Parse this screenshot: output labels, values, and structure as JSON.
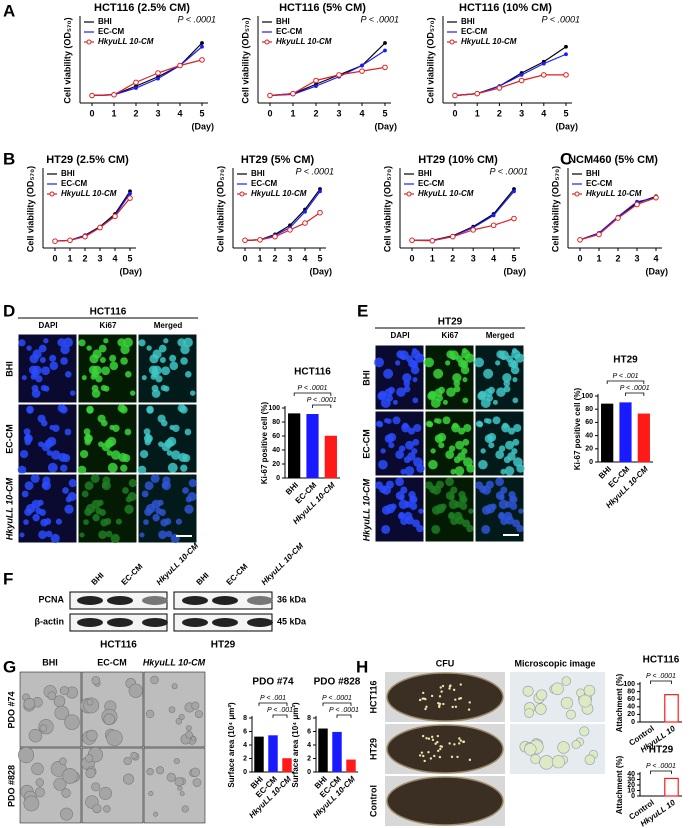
{
  "panel_letters": [
    "A",
    "B",
    "C",
    "D",
    "E",
    "F",
    "G",
    "H"
  ],
  "chart_data": [
    {
      "type": "line",
      "title": "HCT116 (2.5% CM)",
      "x": [
        0,
        1,
        2,
        3,
        4,
        5
      ],
      "xlim": [
        0,
        5
      ],
      "xticks": [
        0,
        1,
        2,
        3,
        4,
        5
      ],
      "x_label": "(Day)",
      "y_label": "Cell viability (OD₅₇₀)",
      "ylim": [
        0,
        2
      ],
      "annotation": "P < .0001",
      "series": [
        {
          "name": "BHI",
          "color": "#000000",
          "values": [
            0.2,
            0.22,
            0.45,
            0.7,
            1.0,
            1.6
          ]
        },
        {
          "name": "EC-CM",
          "color": "#1a1aff",
          "values": [
            0.2,
            0.22,
            0.4,
            0.65,
            1.0,
            1.5
          ]
        },
        {
          "name": "HkyuLL 10-CM",
          "color": "#e02020",
          "values": [
            0.2,
            0.22,
            0.55,
            0.8,
            1.0,
            1.15
          ]
        }
      ]
    },
    {
      "type": "line",
      "title": "HCT116 (5% CM)",
      "x": [
        0,
        1,
        2,
        3,
        4,
        5
      ],
      "xlim": [
        0,
        5
      ],
      "xticks": [
        0,
        1,
        2,
        3,
        4,
        5
      ],
      "x_label": "(Day)",
      "y_label": "Cell viability (OD₅₇₀)",
      "ylim": [
        0,
        2
      ],
      "annotation": "P < .0001",
      "series": [
        {
          "name": "BHI",
          "color": "#000000",
          "values": [
            0.2,
            0.25,
            0.5,
            0.75,
            1.0,
            1.6
          ]
        },
        {
          "name": "EC-CM",
          "color": "#1a1aff",
          "values": [
            0.2,
            0.23,
            0.45,
            0.7,
            1.0,
            1.4
          ]
        },
        {
          "name": "HkyuLL 10-CM",
          "color": "#e02020",
          "values": [
            0.2,
            0.25,
            0.6,
            0.75,
            0.85,
            0.95
          ]
        }
      ]
    },
    {
      "type": "line",
      "title": "HCT116 (10% CM)",
      "x": [
        0,
        1,
        2,
        3,
        4,
        5
      ],
      "xlim": [
        0,
        5
      ],
      "xticks": [
        0,
        1,
        2,
        3,
        4,
        5
      ],
      "x_label": "(Day)",
      "y_label": "Cell viability (OD₅₇₀)",
      "ylim": [
        0,
        2
      ],
      "annotation": "P < .0001",
      "series": [
        {
          "name": "BHI",
          "color": "#000000",
          "values": [
            0.2,
            0.25,
            0.45,
            0.8,
            1.1,
            1.5
          ]
        },
        {
          "name": "EC-CM",
          "color": "#1a1aff",
          "values": [
            0.2,
            0.25,
            0.45,
            0.75,
            1.05,
            1.3
          ]
        },
        {
          "name": "HkyuLL 10-CM",
          "color": "#e02020",
          "values": [
            0.2,
            0.25,
            0.4,
            0.6,
            0.75,
            0.75
          ]
        }
      ]
    },
    {
      "type": "line",
      "title": "HT29 (2.5% CM)",
      "x": [
        0,
        1,
        2,
        3,
        4,
        5
      ],
      "xlim": [
        0,
        5
      ],
      "xticks": [
        0,
        1,
        2,
        3,
        4,
        5
      ],
      "x_label": "(Day)",
      "y_label": "Cell viability (OD₅₇₀)",
      "ylim": [
        0,
        1.5
      ],
      "series": [
        {
          "name": "BHI",
          "color": "#000000",
          "values": [
            0.15,
            0.17,
            0.28,
            0.47,
            0.75,
            1.25
          ]
        },
        {
          "name": "EC-CM",
          "color": "#1a1aff",
          "values": [
            0.15,
            0.17,
            0.27,
            0.45,
            0.72,
            1.2
          ]
        },
        {
          "name": "HkyuLL 10-CM",
          "color": "#e02020",
          "values": [
            0.15,
            0.17,
            0.25,
            0.45,
            0.7,
            1.1
          ]
        }
      ]
    },
    {
      "type": "line",
      "title": "HT29 (5% CM)",
      "x": [
        0,
        1,
        2,
        3,
        4,
        5
      ],
      "xlim": [
        0,
        5
      ],
      "xticks": [
        0,
        1,
        2,
        3,
        4,
        5
      ],
      "x_label": "(Day)",
      "y_label": "Cell viability (OD₅₇₀)",
      "ylim": [
        0,
        1.5
      ],
      "annotation": "P < .0001",
      "series": [
        {
          "name": "BHI",
          "color": "#000000",
          "values": [
            0.17,
            0.18,
            0.3,
            0.5,
            0.85,
            1.3
          ]
        },
        {
          "name": "EC-CM",
          "color": "#1a1aff",
          "values": [
            0.17,
            0.18,
            0.28,
            0.45,
            0.8,
            1.25
          ]
        },
        {
          "name": "HkyuLL 10-CM",
          "color": "#e02020",
          "values": [
            0.17,
            0.18,
            0.25,
            0.4,
            0.55,
            0.78
          ]
        }
      ]
    },
    {
      "type": "line",
      "title": "HT29 (10% CM)",
      "x": [
        0,
        1,
        2,
        3,
        4,
        5
      ],
      "xlim": [
        0,
        5
      ],
      "xticks": [
        0,
        1,
        2,
        3,
        4,
        5
      ],
      "x_label": "(Day)",
      "y_label": "Cell viability (OD₅₇₀)",
      "ylim": [
        0,
        1.5
      ],
      "annotation": "P < .0001",
      "series": [
        {
          "name": "BHI",
          "color": "#000000",
          "values": [
            0.17,
            0.17,
            0.27,
            0.47,
            0.75,
            1.3
          ]
        },
        {
          "name": "EC-CM",
          "color": "#1a1aff",
          "values": [
            0.17,
            0.17,
            0.26,
            0.45,
            0.72,
            1.25
          ]
        },
        {
          "name": "HkyuLL 10-CM",
          "color": "#e02020",
          "values": [
            0.17,
            0.16,
            0.25,
            0.4,
            0.5,
            0.65
          ]
        }
      ]
    },
    {
      "type": "line",
      "title": "NCM460 (5% CM)",
      "x": [
        0,
        1,
        2,
        3,
        4
      ],
      "xlim": [
        0,
        4
      ],
      "xticks": [
        0,
        1,
        2,
        3,
        4
      ],
      "x_label": "(Day)",
      "y_label": "Cell viability (OD₅₇₀)",
      "ylim": [
        0,
        0.5
      ],
      "series": [
        {
          "name": "BHI",
          "color": "#000000",
          "values": [
            0.06,
            0.11,
            0.23,
            0.33,
            0.38
          ]
        },
        {
          "name": "EC-CM",
          "color": "#1a1aff",
          "values": [
            0.06,
            0.11,
            0.23,
            0.34,
            0.37
          ]
        },
        {
          "name": "HkyuLL 10-CM",
          "color": "#e02020",
          "values": [
            0.06,
            0.1,
            0.22,
            0.32,
            0.37
          ]
        }
      ]
    },
    {
      "type": "bar",
      "title": "HCT116",
      "categories": [
        "BHI",
        "EC-CM",
        "HkyuLL 10-CM"
      ],
      "values": [
        92,
        91,
        60
      ],
      "colors": [
        "#000000",
        "#1a1aff",
        "#ff1a1a"
      ],
      "y_label": "Ki-67 positive cell (%)",
      "ylim": [
        0,
        100
      ],
      "yticks": [
        0,
        20,
        40,
        60,
        80,
        100
      ],
      "annotations": [
        "P < .0001",
        "P < .0001"
      ]
    },
    {
      "type": "bar",
      "title": "HT29",
      "categories": [
        "BHI",
        "EC-CM",
        "HkyuLL 10-CM"
      ],
      "values": [
        88,
        90,
        73
      ],
      "colors": [
        "#000000",
        "#1a1aff",
        "#ff1a1a"
      ],
      "y_label": "Ki-67 positive cell (%)",
      "ylim": [
        0,
        100
      ],
      "yticks": [
        0,
        20,
        40,
        60,
        80,
        100
      ],
      "annotations": [
        "P < .001",
        "P < .0001"
      ]
    },
    {
      "type": "bar",
      "title": "PDO #74",
      "categories": [
        "BHI",
        "EC-CM",
        "HkyuLL 10-CM"
      ],
      "values": [
        5.2,
        5.4,
        2.0
      ],
      "colors": [
        "#000000",
        "#1a1aff",
        "#ff1a1a"
      ],
      "y_label": "Surface area (10⁴ μm²)",
      "ylim": [
        0,
        8
      ],
      "yticks": [
        0,
        2,
        4,
        6,
        8
      ],
      "annotations": [
        "P < .001",
        "P < .001"
      ]
    },
    {
      "type": "bar",
      "title": "PDO #828",
      "categories": [
        "BHI",
        "EC-CM",
        "HkyuLL 10-CM"
      ],
      "values": [
        6.4,
        5.9,
        1.8
      ],
      "colors": [
        "#000000",
        "#1a1aff",
        "#ff1a1a"
      ],
      "y_label": "Surface area (10⁴ μm²)",
      "ylim": [
        0,
        8
      ],
      "yticks": [
        0,
        2,
        4,
        6,
        8
      ],
      "annotations": [
        "P < .0001",
        "P < .0001"
      ]
    },
    {
      "type": "bar",
      "title": "HCT116",
      "categories": [
        "Control",
        "HkyuLL 10"
      ],
      "values": [
        0,
        72
      ],
      "colors": [
        "#000000",
        "#ff1a1a"
      ],
      "bar_style": "outline",
      "y_label": "Attachment (%)",
      "ylim": [
        0,
        100
      ],
      "yticks": [
        0,
        20,
        40,
        60,
        80,
        100
      ],
      "annotations": [
        "P < .0001"
      ]
    },
    {
      "type": "bar",
      "title": "HT29",
      "categories": [
        "Control",
        "HkyuLL 10"
      ],
      "values": [
        0,
        32
      ],
      "colors": [
        "#000000",
        "#ff1a1a"
      ],
      "bar_style": "outline",
      "y_label": "Attachment (%)",
      "ylim": [
        0,
        40
      ],
      "yticks": [
        0,
        10,
        20,
        30,
        40
      ],
      "annotations": [
        "P < .0001"
      ]
    }
  ],
  "panel_d": {
    "group": "HCT116",
    "columns": [
      "DAPI",
      "Ki67",
      "Merged"
    ],
    "rows": [
      "BHI",
      "EC-CM",
      "HkyuLL 10-CM"
    ]
  },
  "panel_e": {
    "group": "HT29",
    "columns": [
      "DAPI",
      "Ki67",
      "Merged"
    ],
    "rows": [
      "BHI",
      "EC-CM",
      "HkyuLL 10-CM"
    ]
  },
  "panel_f": {
    "lanes": [
      "BHI",
      "EC-CM",
      "HkyuLL 10-CM"
    ],
    "groups": [
      "HCT116",
      "HT29"
    ],
    "bands": [
      {
        "name": "PCNA",
        "size": "36 kDa"
      },
      {
        "name": "β-actin",
        "size": "45 kDa"
      }
    ]
  },
  "panel_g": {
    "columns": [
      "BHI",
      "EC-CM",
      "HkyuLL 10-CM"
    ],
    "rows": [
      "PDO #74",
      "PDO #828"
    ]
  },
  "panel_h": {
    "columns": [
      "CFU",
      "Microscopic image"
    ],
    "rows": [
      "HCT116",
      "HT29",
      "Control"
    ]
  }
}
